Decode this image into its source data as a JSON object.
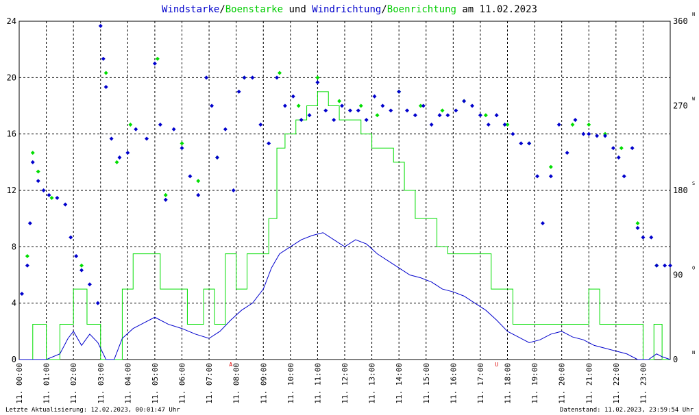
{
  "title": {
    "parts": [
      {
        "text": "Windstarke",
        "color": "#0000cc"
      },
      {
        "text": "/",
        "color": "#000000"
      },
      {
        "text": "Boenstarke",
        "color": "#00cc00"
      },
      {
        "text": " und ",
        "color": "#000000"
      },
      {
        "text": "Windrichtung",
        "color": "#0000cc"
      },
      {
        "text": "/",
        "color": "#000000"
      },
      {
        "text": "Boenrichtung",
        "color": "#00cc00"
      },
      {
        "text": " am 11.02.2023",
        "color": "#000000"
      }
    ]
  },
  "footer": {
    "left": "Letzte Aktualisierung: 12.02.2023, 00:01:47 Uhr",
    "right": "Datenstand: 11.02.2023, 23:59:54 Uhr"
  },
  "colors": {
    "wind": "#0000cc",
    "gust": "#00dd00",
    "grid": "#000000",
    "marker": "#dd0000"
  },
  "chart_data": {
    "type": "line",
    "x_unit": "hour of day",
    "x_tick_labels": [
      "11. 00:00",
      "11. 01:00",
      "11. 02:00",
      "11. 03:00",
      "11. 04:00",
      "11. 05:00",
      "11. 06:00",
      "11. 07:00",
      "11. 08:00",
      "11. 09:00",
      "11. 10:00",
      "11. 11:00",
      "11. 12:00",
      "11. 13:00",
      "11. 14:00",
      "11. 15:00",
      "11. 16:00",
      "11. 17:00",
      "11. 18:00",
      "11. 19:00",
      "11. 20:00",
      "11. 21:00",
      "11. 22:00",
      "11. 23:00"
    ],
    "xlim": [
      0,
      24
    ],
    "y_left": {
      "ylim": [
        0,
        24
      ],
      "ticks": [
        "0",
        "4",
        "8",
        "12",
        "16",
        "20",
        "24"
      ]
    },
    "y_right": {
      "ylim": [
        0,
        360
      ],
      "ticks": [
        "0",
        "90",
        "180",
        "270",
        "360"
      ],
      "compass": [
        "N",
        "O",
        "S",
        "W",
        "N"
      ]
    },
    "markers": [
      {
        "x": 7.8,
        "label": "A"
      },
      {
        "x": 17.6,
        "label": "U"
      }
    ],
    "series": [
      {
        "name": "Windstarke",
        "kind": "line",
        "points": [
          [
            0,
            0
          ],
          [
            0.5,
            0
          ],
          [
            1,
            0
          ],
          [
            1.5,
            0.4
          ],
          [
            1.8,
            1.5
          ],
          [
            2,
            2
          ],
          [
            2.3,
            1
          ],
          [
            2.6,
            1.8
          ],
          [
            2.9,
            1.2
          ],
          [
            3.2,
            0
          ],
          [
            3.5,
            0
          ],
          [
            3.8,
            1.5
          ],
          [
            4.2,
            2.2
          ],
          [
            4.6,
            2.6
          ],
          [
            5,
            3
          ],
          [
            5.5,
            2.5
          ],
          [
            6,
            2.2
          ],
          [
            6.5,
            1.8
          ],
          [
            7,
            1.5
          ],
          [
            7.4,
            2
          ],
          [
            7.8,
            2.8
          ],
          [
            8.2,
            3.5
          ],
          [
            8.6,
            4
          ],
          [
            9,
            5
          ],
          [
            9.3,
            6.5
          ],
          [
            9.6,
            7.5
          ],
          [
            10,
            8
          ],
          [
            10.4,
            8.5
          ],
          [
            10.8,
            8.8
          ],
          [
            11.2,
            9
          ],
          [
            11.6,
            8.5
          ],
          [
            12,
            8
          ],
          [
            12.4,
            8.5
          ],
          [
            12.8,
            8.2
          ],
          [
            13.2,
            7.5
          ],
          [
            13.6,
            7
          ],
          [
            14,
            6.5
          ],
          [
            14.4,
            6
          ],
          [
            14.8,
            5.8
          ],
          [
            15.2,
            5.5
          ],
          [
            15.6,
            5
          ],
          [
            16,
            4.8
          ],
          [
            16.4,
            4.5
          ],
          [
            16.8,
            4
          ],
          [
            17.2,
            3.5
          ],
          [
            17.6,
            2.8
          ],
          [
            18,
            2
          ],
          [
            18.4,
            1.6
          ],
          [
            18.8,
            1.2
          ],
          [
            19.2,
            1.4
          ],
          [
            19.6,
            1.8
          ],
          [
            20,
            2
          ],
          [
            20.4,
            1.6
          ],
          [
            20.8,
            1.4
          ],
          [
            21.2,
            1
          ],
          [
            21.6,
            0.8
          ],
          [
            22,
            0.6
          ],
          [
            22.4,
            0.4
          ],
          [
            22.8,
            0
          ],
          [
            23.2,
            0
          ],
          [
            23.5,
            0.4
          ],
          [
            23.7,
            0.2
          ],
          [
            24,
            0
          ]
        ]
      },
      {
        "name": "Boenstarke",
        "kind": "step",
        "points": [
          [
            0,
            0
          ],
          [
            0.5,
            2.5
          ],
          [
            1,
            0
          ],
          [
            1.5,
            2.5
          ],
          [
            2,
            5
          ],
          [
            2.5,
            2.5
          ],
          [
            3,
            0
          ],
          [
            3.5,
            0
          ],
          [
            3.8,
            5
          ],
          [
            4.2,
            7.5
          ],
          [
            4.8,
            7.5
          ],
          [
            5.2,
            5
          ],
          [
            5.8,
            5
          ],
          [
            6.2,
            2.5
          ],
          [
            6.8,
            5
          ],
          [
            7.2,
            2.5
          ],
          [
            7.6,
            7.5
          ],
          [
            8,
            5
          ],
          [
            8.4,
            7.5
          ],
          [
            8.8,
            7.5
          ],
          [
            9.2,
            10
          ],
          [
            9.5,
            15
          ],
          [
            9.8,
            16
          ],
          [
            10.2,
            17
          ],
          [
            10.6,
            18
          ],
          [
            11,
            19
          ],
          [
            11.4,
            18
          ],
          [
            11.8,
            17
          ],
          [
            12.2,
            17
          ],
          [
            12.6,
            16
          ],
          [
            13,
            15
          ],
          [
            13.4,
            15
          ],
          [
            13.8,
            14
          ],
          [
            14.2,
            12
          ],
          [
            14.6,
            10
          ],
          [
            15,
            10
          ],
          [
            15.4,
            8
          ],
          [
            15.8,
            7.5
          ],
          [
            16.2,
            7.5
          ],
          [
            16.6,
            7.5
          ],
          [
            17,
            7.5
          ],
          [
            17.4,
            5
          ],
          [
            17.8,
            5
          ],
          [
            18.2,
            2.5
          ],
          [
            18.6,
            2.5
          ],
          [
            19,
            2.5
          ],
          [
            19.4,
            2.5
          ],
          [
            19.8,
            2.5
          ],
          [
            20.2,
            2.5
          ],
          [
            20.6,
            2.5
          ],
          [
            21,
            5
          ],
          [
            21.4,
            2.5
          ],
          [
            21.8,
            2.5
          ],
          [
            22.2,
            2.5
          ],
          [
            22.6,
            2.5
          ],
          [
            23,
            0
          ],
          [
            23.4,
            2.5
          ],
          [
            23.7,
            0
          ],
          [
            24,
            0
          ]
        ]
      },
      {
        "name": "Windrichtung",
        "kind": "scatter",
        "points": [
          [
            0.1,
            70
          ],
          [
            0.3,
            100
          ],
          [
            0.4,
            145
          ],
          [
            0.5,
            210
          ],
          [
            0.7,
            190
          ],
          [
            0.9,
            180
          ],
          [
            1.1,
            175
          ],
          [
            1.4,
            172
          ],
          [
            1.7,
            165
          ],
          [
            1.9,
            130
          ],
          [
            2.1,
            110
          ],
          [
            2.3,
            95
          ],
          [
            2.6,
            80
          ],
          [
            2.9,
            60
          ],
          [
            3.0,
            355
          ],
          [
            3.1,
            320
          ],
          [
            3.2,
            290
          ],
          [
            3.4,
            235
          ],
          [
            3.7,
            215
          ],
          [
            4.0,
            220
          ],
          [
            4.3,
            245
          ],
          [
            4.7,
            235
          ],
          [
            5.0,
            315
          ],
          [
            5.2,
            250
          ],
          [
            5.4,
            170
          ],
          [
            5.7,
            245
          ],
          [
            6.0,
            225
          ],
          [
            6.3,
            195
          ],
          [
            6.6,
            175
          ],
          [
            6.9,
            300
          ],
          [
            7.1,
            270
          ],
          [
            7.3,
            215
          ],
          [
            7.6,
            245
          ],
          [
            7.9,
            180
          ],
          [
            8.1,
            285
          ],
          [
            8.3,
            300
          ],
          [
            8.6,
            300
          ],
          [
            8.9,
            250
          ],
          [
            9.2,
            230
          ],
          [
            9.5,
            300
          ],
          [
            9.8,
            270
          ],
          [
            10.1,
            280
          ],
          [
            10.4,
            255
          ],
          [
            10.7,
            260
          ],
          [
            11.0,
            295
          ],
          [
            11.3,
            265
          ],
          [
            11.6,
            255
          ],
          [
            11.9,
            270
          ],
          [
            12.2,
            265
          ],
          [
            12.5,
            265
          ],
          [
            12.8,
            255
          ],
          [
            13.1,
            280
          ],
          [
            13.4,
            270
          ],
          [
            13.7,
            265
          ],
          [
            14.0,
            285
          ],
          [
            14.3,
            265
          ],
          [
            14.6,
            260
          ],
          [
            14.9,
            270
          ],
          [
            15.2,
            250
          ],
          [
            15.5,
            260
          ],
          [
            15.8,
            260
          ],
          [
            16.1,
            265
          ],
          [
            16.4,
            275
          ],
          [
            16.7,
            270
          ],
          [
            17.0,
            260
          ],
          [
            17.3,
            250
          ],
          [
            17.6,
            260
          ],
          [
            17.9,
            250
          ],
          [
            18.2,
            240
          ],
          [
            18.5,
            230
          ],
          [
            18.8,
            230
          ],
          [
            19.1,
            195
          ],
          [
            19.3,
            145
          ],
          [
            19.6,
            195
          ],
          [
            19.9,
            250
          ],
          [
            20.2,
            220
          ],
          [
            20.5,
            255
          ],
          [
            20.8,
            240
          ],
          [
            21.0,
            240
          ],
          [
            21.3,
            238
          ],
          [
            21.6,
            238
          ],
          [
            21.9,
            225
          ],
          [
            22.1,
            215
          ],
          [
            22.3,
            195
          ],
          [
            22.6,
            225
          ],
          [
            22.8,
            140
          ],
          [
            23.0,
            130
          ],
          [
            23.3,
            130
          ],
          [
            23.5,
            100
          ],
          [
            23.8,
            100
          ],
          [
            24.0,
            100
          ]
        ]
      },
      {
        "name": "Boenrichtung",
        "kind": "scatter",
        "points": [
          [
            0.3,
            110
          ],
          [
            0.5,
            220
          ],
          [
            0.7,
            200
          ],
          [
            1.2,
            172
          ],
          [
            2.3,
            100
          ],
          [
            3.2,
            305
          ],
          [
            3.6,
            210
          ],
          [
            4.1,
            250
          ],
          [
            5.1,
            320
          ],
          [
            5.4,
            175
          ],
          [
            6.0,
            230
          ],
          [
            6.6,
            190
          ],
          [
            7.3,
            215
          ],
          [
            8.3,
            300
          ],
          [
            9.6,
            305
          ],
          [
            10.3,
            270
          ],
          [
            11.0,
            300
          ],
          [
            11.8,
            275
          ],
          [
            12.6,
            270
          ],
          [
            13.2,
            260
          ],
          [
            14.0,
            285
          ],
          [
            14.8,
            270
          ],
          [
            15.6,
            265
          ],
          [
            16.4,
            275
          ],
          [
            17.2,
            260
          ],
          [
            18.0,
            250
          ],
          [
            18.8,
            230
          ],
          [
            19.6,
            205
          ],
          [
            20.4,
            250
          ],
          [
            21.0,
            250
          ],
          [
            21.6,
            240
          ],
          [
            22.2,
            225
          ],
          [
            22.8,
            145
          ],
          [
            23.5,
            100
          ]
        ]
      }
    ]
  }
}
